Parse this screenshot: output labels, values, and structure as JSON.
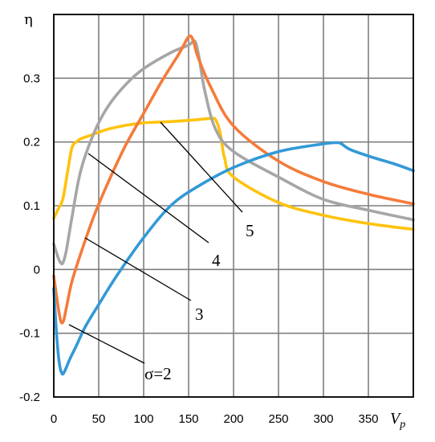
{
  "chart_data": {
    "type": "line",
    "ylabel": "η",
    "xlabel": "V",
    "xlabel_sub": "p",
    "xlim": [
      0,
      400
    ],
    "ylim": [
      -0.2,
      0.4
    ],
    "x_ticks": [
      0,
      50,
      100,
      150,
      200,
      250,
      300,
      350
    ],
    "y_ticks": [
      -0.2,
      -0.1,
      0,
      0.1,
      0.2,
      0.3
    ],
    "y_tick_labels": [
      "-0.2",
      "-0.1",
      "0",
      "0.1",
      "0.2",
      "0.3"
    ],
    "grid": true,
    "colors": {
      "blue": "#3399d6",
      "orange": "#f47b3a",
      "gray": "#a6a6a6",
      "gold": "#ffc20e"
    },
    "series": [
      {
        "name": "σ=2",
        "color": "#3399d6",
        "x": [
          0,
          3,
          6,
          9,
          12,
          18,
          25,
          35,
          50,
          70,
          100,
          130,
          160,
          200,
          250,
          300,
          315,
          320,
          330,
          350,
          380,
          400
        ],
        "y": [
          -0.03,
          -0.1,
          -0.145,
          -0.163,
          -0.16,
          -0.14,
          -0.12,
          -0.09,
          -0.055,
          -0.01,
          0.05,
          0.1,
          0.13,
          0.16,
          0.185,
          0.197,
          0.199,
          0.197,
          0.188,
          0.178,
          0.165,
          0.155
        ]
      },
      {
        "name": "3",
        "color": "#f47b3a",
        "x": [
          0,
          5,
          8,
          11,
          14,
          20,
          30,
          45,
          60,
          80,
          100,
          120,
          140,
          150,
          155,
          160,
          175,
          200,
          250,
          300,
          350,
          400
        ],
        "y": [
          -0.01,
          -0.06,
          -0.082,
          -0.08,
          -0.06,
          -0.02,
          0.025,
          0.085,
          0.135,
          0.195,
          0.245,
          0.295,
          0.34,
          0.365,
          0.36,
          0.335,
          0.285,
          0.225,
          0.17,
          0.138,
          0.118,
          0.103
        ]
      },
      {
        "name": "4",
        "color": "#a6a6a6",
        "x": [
          0,
          4,
          7,
          10,
          14,
          20,
          30,
          45,
          60,
          80,
          100,
          130,
          150,
          155,
          158,
          162,
          168,
          180,
          200,
          250,
          300,
          350,
          400
        ],
        "y": [
          0.04,
          0.022,
          0.012,
          0.01,
          0.03,
          0.08,
          0.155,
          0.215,
          0.255,
          0.29,
          0.315,
          0.34,
          0.352,
          0.358,
          0.355,
          0.33,
          0.28,
          0.22,
          0.185,
          0.145,
          0.11,
          0.093,
          0.078
        ]
      },
      {
        "name": "5",
        "color": "#ffc20e",
        "x": [
          0,
          5,
          10,
          15,
          20,
          25,
          30,
          40,
          60,
          80,
          100,
          130,
          160,
          175,
          180,
          185,
          190,
          200,
          250,
          300,
          350,
          400
        ],
        "y": [
          0.08,
          0.095,
          0.11,
          0.15,
          0.19,
          0.2,
          0.205,
          0.21,
          0.22,
          0.226,
          0.23,
          0.232,
          0.235,
          0.237,
          0.235,
          0.215,
          0.175,
          0.145,
          0.105,
          0.085,
          0.072,
          0.063
        ]
      }
    ]
  }
}
